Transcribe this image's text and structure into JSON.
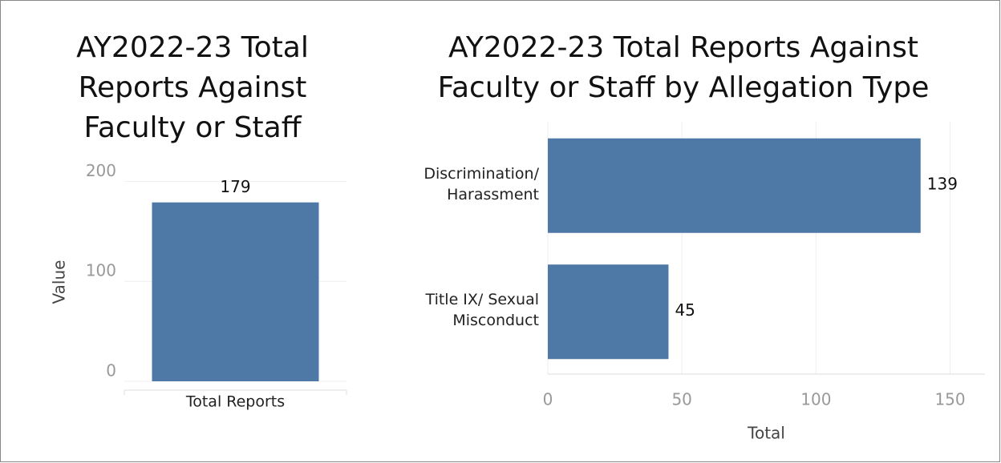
{
  "chart_data": [
    {
      "type": "bar",
      "title": "AY2022-23 Total Reports Against Faculty or Staff",
      "categories": [
        "Total Reports"
      ],
      "values": [
        179
      ],
      "color": "#4e79a7",
      "ylabel": "Value",
      "ylim": [
        0,
        210
      ],
      "yticks": [
        0,
        100,
        200
      ],
      "grid": true
    },
    {
      "type": "barh",
      "title": "AY2022-23 Total Reports Against Faculty or Staff by Allegation Type",
      "categories": [
        "Discrimination/ Harassment",
        "Title IX/ Sexual Misconduct"
      ],
      "values": [
        139,
        45
      ],
      "color": "#4e79a7",
      "xlabel": "Total",
      "xlim": [
        0,
        163
      ],
      "xticks": [
        0,
        50,
        100,
        150
      ],
      "grid": true
    }
  ]
}
